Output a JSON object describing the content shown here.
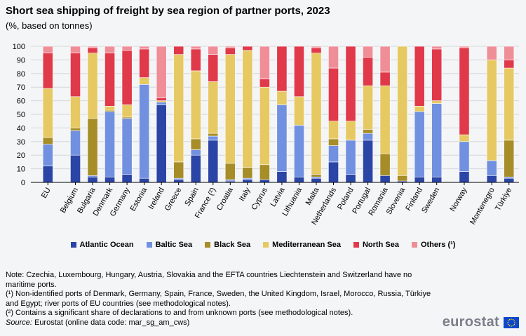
{
  "header": {
    "title": "Short sea shipping of freight by sea region of partner ports, 2023",
    "subtitle": "(%, based on tonnes)"
  },
  "colors": {
    "Atlantic Ocean": "#2b45a6",
    "Baltic Sea": "#7190e0",
    "Black Sea": "#a78d28",
    "Mediterranean Sea": "#e6c962",
    "North Sea": "#e0394a",
    "Others": "#ef8e97"
  },
  "chart_data": {
    "type": "bar",
    "stacked": true,
    "categories": [
      "EU",
      "Belgium",
      "Bulgaria",
      "Denmark",
      "Germany",
      "Estonia",
      "Ireland",
      "Greece",
      "Spain",
      "France (²)",
      "Croatia",
      "Italy",
      "Cyprus",
      "Latvia",
      "Lithuania",
      "Malta",
      "Netherlands",
      "Poland",
      "Portugal",
      "Romania",
      "Slovenia",
      "Finland",
      "Sweden",
      "Norway",
      "Montenegro",
      "Türkiye"
    ],
    "gap_after": [
      "EU",
      "Sweden",
      "Norway"
    ],
    "ylim": [
      0,
      100
    ],
    "yticks": [
      0,
      10,
      20,
      30,
      40,
      50,
      60,
      70,
      80,
      90,
      100
    ],
    "grid": true,
    "legend_position": "bottom",
    "series": [
      {
        "name": "Atlantic Ocean",
        "legend": "Atlantic Ocean",
        "values": [
          12,
          20,
          4,
          4,
          6,
          3,
          57,
          2,
          20,
          31,
          1,
          2,
          2,
          8,
          4,
          3,
          15,
          6,
          31,
          5,
          1,
          4,
          4,
          8,
          5,
          3
        ]
      },
      {
        "name": "Baltic Sea",
        "legend": "Baltic Sea",
        "values": [
          16,
          18,
          1,
          48,
          41,
          69,
          2,
          1,
          4,
          3,
          1,
          1,
          0,
          49,
          38,
          1,
          12,
          25,
          5,
          0,
          0,
          48,
          54,
          22,
          11,
          1
        ]
      },
      {
        "name": "Black Sea",
        "legend": "Black Sea",
        "values": [
          5,
          2,
          42,
          1,
          1,
          0,
          0,
          12,
          8,
          2,
          12,
          8,
          11,
          0,
          0,
          2,
          5,
          0,
          3,
          16,
          4,
          0,
          0,
          0,
          0,
          27
        ]
      },
      {
        "name": "Mediterranean Sea",
        "legend": "Mediterranean Sea",
        "values": [
          36,
          23,
          48,
          3,
          9,
          5,
          1,
          79,
          50,
          38,
          80,
          86,
          57,
          10,
          21,
          89,
          13,
          14,
          32,
          50,
          95,
          4,
          2,
          5,
          74,
          53
        ]
      },
      {
        "name": "North Sea",
        "legend": "North Sea",
        "values": [
          26,
          32,
          4,
          39,
          40,
          21,
          2,
          6,
          16,
          20,
          5,
          3,
          6,
          33,
          37,
          4,
          39,
          55,
          21,
          10,
          0,
          44,
          38,
          64,
          0,
          6
        ]
      },
      {
        "name": "Others",
        "legend": "Others (¹)",
        "values": [
          5,
          5,
          1,
          5,
          3,
          2,
          38,
          0,
          2,
          6,
          1,
          0,
          24,
          0,
          0,
          1,
          16,
          0,
          8,
          19,
          0,
          0,
          2,
          1,
          10,
          10
        ]
      }
    ]
  },
  "notes": {
    "line1": "Note: Czechia, Luxembourg, Hungary, Austria, Slovakia and the EFTA countries Liechtenstein and Switzerland have no maritime ports.",
    "line2": "(¹) Non-identified ports of Denmark, Germany, Spain, France, Sweden, the United Kingdom, Israel, Morocco, Russia, Türkiye and Egypt; river ports of EU countries (see methodological notes).",
    "line3": "(²) Contains a significant share of declarations to and from unknown ports (see methodological notes).",
    "source_label": "Source:",
    "source_text": " Eurostat (online data code: mar_sg_am_cws)"
  },
  "logo": {
    "text": "eurostat"
  }
}
